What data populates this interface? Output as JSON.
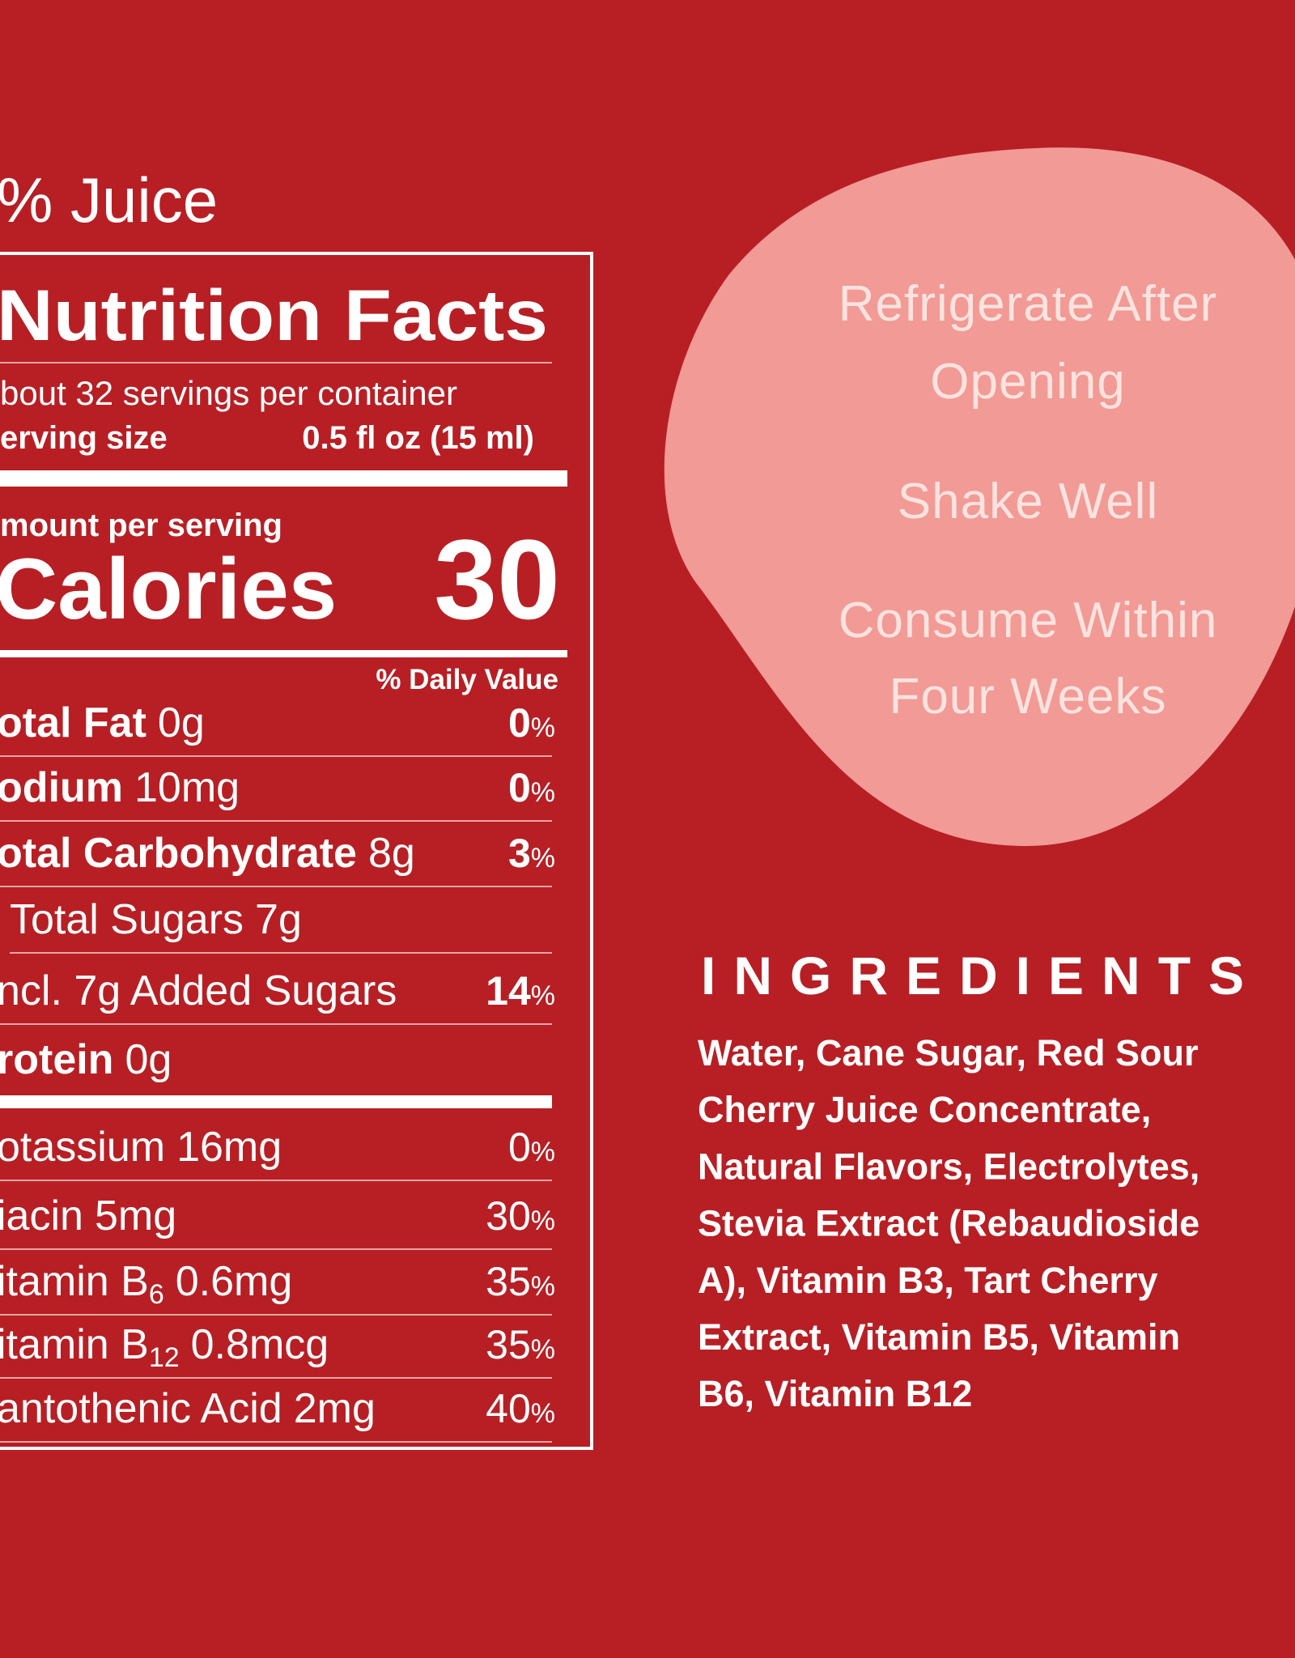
{
  "header": {
    "title": "% Juice"
  },
  "nutrition": {
    "title": "Nutrition Facts",
    "servings": "bout 32 servings per container",
    "serving_size_label": "erving size",
    "serving_size": "0.5 fl oz (15 ml)",
    "amount_per_serving": "mount per serving",
    "calories_label": "Calories",
    "calories": "30",
    "daily_value_header": "% Daily Value",
    "rows": [
      {
        "name": "otal Fat",
        "amount": "0g",
        "dv": "0",
        "pct": "%",
        "bold": true
      },
      {
        "name": "odium",
        "amount": "10mg",
        "dv": "0",
        "pct": "%",
        "bold": true
      },
      {
        "name": "otal Carbohydrate",
        "amount": "8g",
        "dv": "3",
        "pct": "%",
        "bold": true
      },
      {
        "name": "Total Sugars",
        "amount": "7g",
        "bold": false,
        "indent": true
      },
      {
        "name": "ncl. 7g Added Sugars",
        "dv": "14",
        "pct": "%",
        "bold": false,
        "bold_dv": true
      },
      {
        "name": "rotein",
        "amount": "0g",
        "bold": true,
        "thick_rule_after": true
      },
      {
        "name": "otassium",
        "amount": "16mg",
        "dv": "0",
        "pct": "%",
        "bold": false
      },
      {
        "name": "iacin",
        "amount": "5mg",
        "dv": "30",
        "pct": "%",
        "bold": false
      },
      {
        "name": "itamin B",
        "sub": "6",
        "amount": "0.6mg",
        "dv": "35",
        "pct": "%",
        "bold": false
      },
      {
        "name": "itamin B",
        "sub": "12",
        "amount": "0.8mcg",
        "dv": "35",
        "pct": "%",
        "bold": false
      },
      {
        "name": "antothenic Acid",
        "amount": "2mg",
        "dv": "40",
        "pct": "%",
        "bold": false
      }
    ]
  },
  "storage": {
    "lines": [
      "Refrigerate After",
      "Opening",
      "Shake Well",
      "Consume Within",
      "Four Weeks"
    ]
  },
  "ingredients": {
    "title": "INGREDIENTS",
    "lines": [
      "Water, Cane Sugar, Red Sour",
      "Cherry Juice Concentrate,",
      "Natural Flavors, Electrolytes,",
      "Stevia Extract (Rebaudioside",
      "A), Vitamin B3, Tart Cherry",
      "Extract, Vitamin B5, Vitamin",
      "B6, Vitamin B12"
    ]
  }
}
